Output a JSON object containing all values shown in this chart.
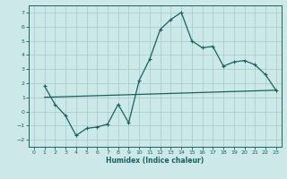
{
  "xlabel": "Humidex (Indice chaleur)",
  "bg_color": "#cce8e8",
  "grid_color": "#aacece",
  "line_color": "#1a6060",
  "curve1_x": [
    1,
    2,
    3,
    4,
    5,
    6,
    7,
    8,
    9,
    10,
    11,
    12,
    13,
    14,
    15,
    16,
    17,
    18,
    19,
    20,
    21,
    22,
    23
  ],
  "curve1_y": [
    1.8,
    0.5,
    -0.3,
    -1.7,
    -1.2,
    -1.1,
    -0.9,
    0.5,
    -0.8,
    2.2,
    3.7,
    5.8,
    6.5,
    7.0,
    5.0,
    4.5,
    4.6,
    3.2,
    3.5,
    3.6,
    3.3,
    2.6,
    1.5
  ],
  "curve2_x": [
    1,
    23
  ],
  "curve2_y": [
    1.0,
    1.5
  ],
  "ylim": [
    -2.5,
    7.5
  ],
  "xlim": [
    -0.5,
    23.5
  ],
  "yticks": [
    -2,
    -1,
    0,
    1,
    2,
    3,
    4,
    5,
    6,
    7
  ],
  "xticks": [
    0,
    1,
    2,
    3,
    4,
    5,
    6,
    7,
    8,
    9,
    10,
    11,
    12,
    13,
    14,
    15,
    16,
    17,
    18,
    19,
    20,
    21,
    22,
    23
  ]
}
